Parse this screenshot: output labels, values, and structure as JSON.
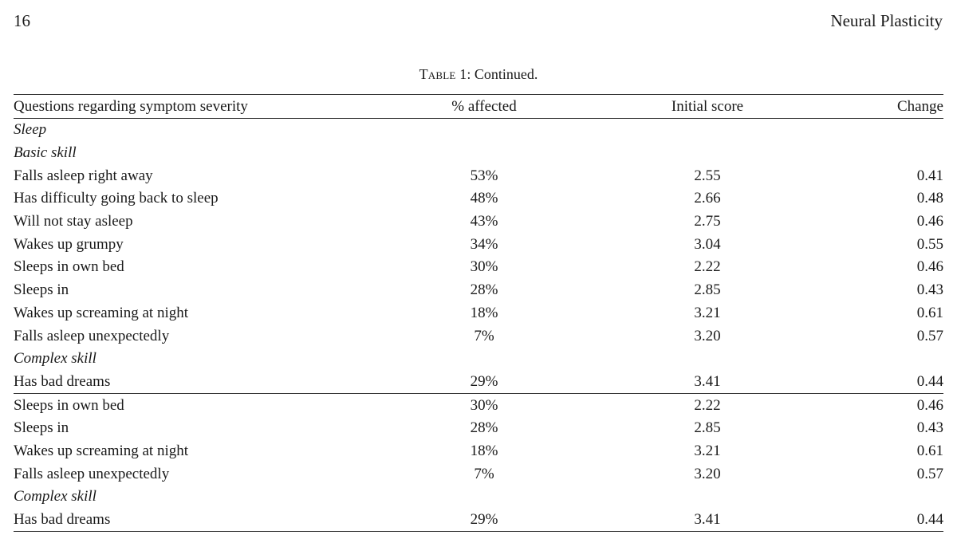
{
  "header": {
    "page_number": "16",
    "journal": "Neural Plasticity"
  },
  "caption": {
    "label": "Table 1",
    "text": ": Continued."
  },
  "columns": {
    "question": "Questions regarding symptom severity",
    "affected": "% affected",
    "initial": "Initial score",
    "change": "Change"
  },
  "rows": [
    {
      "kind": "section",
      "label": "Sleep"
    },
    {
      "kind": "subsection",
      "label": "Basic skill"
    },
    {
      "kind": "item",
      "question": "Falls asleep right away",
      "affected": "53%",
      "initial": "2.55",
      "change": "0.41"
    },
    {
      "kind": "item",
      "question": "Has difficulty going back to sleep",
      "affected": "48%",
      "initial": "2.66",
      "change": "0.48"
    },
    {
      "kind": "item",
      "question": "Will not stay asleep",
      "affected": "43%",
      "initial": "2.75",
      "change": "0.46"
    },
    {
      "kind": "item",
      "question": "Wakes up grumpy",
      "affected": "34%",
      "initial": "3.04",
      "change": "0.55"
    },
    {
      "kind": "item",
      "question": "Sleeps in own bed",
      "affected": "30%",
      "initial": "2.22",
      "change": "0.46"
    },
    {
      "kind": "item",
      "question": "Sleeps in",
      "affected": "28%",
      "initial": "2.85",
      "change": "0.43"
    },
    {
      "kind": "item",
      "question": "Wakes up screaming at night",
      "affected": "18%",
      "initial": "3.21",
      "change": "0.61"
    },
    {
      "kind": "item",
      "question": "Falls asleep unexpectedly",
      "affected": "7%",
      "initial": "3.20",
      "change": "0.57"
    },
    {
      "kind": "subsection",
      "label": "Complex skill"
    },
    {
      "kind": "item",
      "question": "Has bad dreams",
      "affected": "29%",
      "initial": "3.41",
      "change": "0.44"
    },
    {
      "kind": "item",
      "question": "Sleeps in own bed",
      "affected": "30%",
      "initial": "2.22",
      "change": "0.46"
    },
    {
      "kind": "item",
      "question": "Sleeps in",
      "affected": "28%",
      "initial": "2.85",
      "change": "0.43"
    },
    {
      "kind": "item",
      "question": "Wakes up screaming at night",
      "affected": "18%",
      "initial": "3.21",
      "change": "0.61"
    },
    {
      "kind": "item",
      "question": "Falls asleep unexpectedly",
      "affected": "7%",
      "initial": "3.20",
      "change": "0.57"
    },
    {
      "kind": "subsection",
      "label": "Complex skill"
    },
    {
      "kind": "item",
      "question": "Has bad dreams",
      "affected": "29%",
      "initial": "3.41",
      "change": "0.44"
    }
  ]
}
